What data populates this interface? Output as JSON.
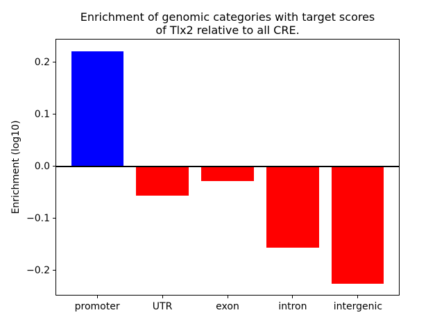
{
  "figure": {
    "title_line1": "Enrichment of genomic categories with target scores",
    "title_line2": "of Tlx2 relative to all CRE.",
    "ylabel": "Enrichment (log10)"
  },
  "chart_data": {
    "type": "bar",
    "title": "Enrichment of genomic categories with target scores\nof Tlx2 relative to all CRE.",
    "xlabel": "",
    "ylabel": "Enrichment (log10)",
    "categories": [
      "promoter",
      "UTR",
      "exon",
      "intron",
      "intergenic"
    ],
    "values": [
      0.221,
      -0.056,
      -0.028,
      -0.156,
      -0.226
    ],
    "bar_colors": [
      "#0000ff",
      "#ff0000",
      "#ff0000",
      "#ff0000",
      "#ff0000"
    ],
    "positive_color": "#0000ff",
    "negative_color": "#ff0000",
    "ylim": [
      -0.248,
      0.245
    ],
    "yticks": [
      0.2,
      0.1,
      0.0,
      -0.1,
      -0.2
    ],
    "ytick_labels": [
      "0.2",
      "0.1",
      "0.0",
      "−0.1",
      "−0.2"
    ],
    "bar_width_fraction": 0.8,
    "grid": false,
    "legend": null,
    "zero_line": true
  }
}
